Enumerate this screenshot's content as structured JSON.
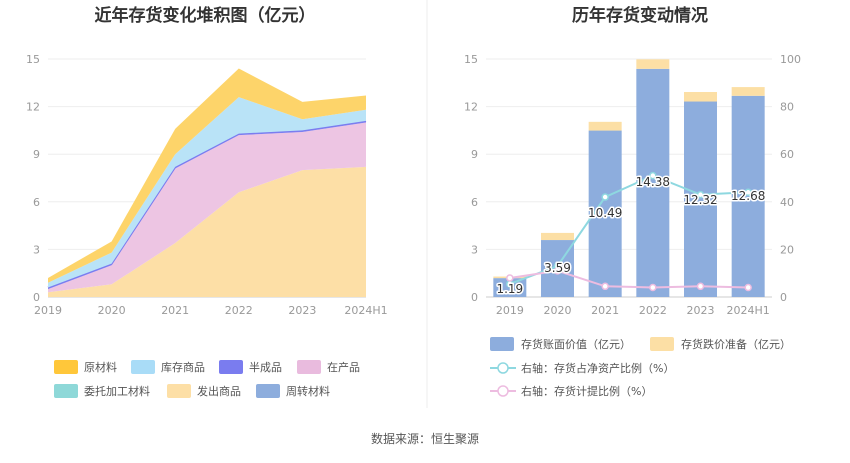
{
  "source": "数据来源：恒生聚源",
  "chart_data": [
    {
      "type": "area",
      "stacked": true,
      "title": "近年存货变化堆积图（亿元）",
      "categories": [
        "2019",
        "2020",
        "2021",
        "2022",
        "2023",
        "2024H1"
      ],
      "ylim": [
        0,
        15
      ],
      "yticks": [
        0,
        3,
        6,
        9,
        12,
        15
      ],
      "grid": true,
      "legend_position": "bottom",
      "series": [
        {
          "name": "发出商品",
          "color": "#FDDFA6",
          "values": [
            0.3,
            0.8,
            3.4,
            6.6,
            8.0,
            8.2
          ]
        },
        {
          "name": "在产品",
          "color": "#EDC5E3",
          "values": [
            0.2,
            1.2,
            4.7,
            3.6,
            2.4,
            2.8
          ]
        },
        {
          "name": "委托加工材料",
          "color": "#8ED8D8",
          "values": [
            0.0,
            0.0,
            0.0,
            0.0,
            0.0,
            0.0
          ]
        },
        {
          "name": "周转材料",
          "color": "#8DADDD",
          "values": [
            0.0,
            0.0,
            0.0,
            0.0,
            0.0,
            0.0
          ]
        },
        {
          "name": "半成品",
          "color": "#8080F0",
          "values": [
            0.1,
            0.1,
            0.1,
            0.1,
            0.1,
            0.1
          ]
        },
        {
          "name": "库存商品",
          "color": "#B9E3F7",
          "values": [
            0.3,
            0.7,
            0.8,
            2.3,
            0.7,
            0.7
          ]
        },
        {
          "name": "原材料",
          "color": "#FDD46A",
          "values": [
            0.3,
            0.7,
            1.6,
            1.8,
            1.1,
            0.9
          ]
        }
      ],
      "legend": [
        {
          "name": "原材料",
          "color": "#FFC73A"
        },
        {
          "name": "库存商品",
          "color": "#A9DCF7"
        },
        {
          "name": "半成品",
          "color": "#7A7CEF"
        },
        {
          "name": "在产品",
          "color": "#E9BBDE"
        },
        {
          "name": "委托加工材料",
          "color": "#8ED8D8"
        },
        {
          "name": "发出商品",
          "color": "#FDDFA6"
        },
        {
          "name": "周转材料",
          "color": "#8DADDD"
        }
      ]
    },
    {
      "type": "bar",
      "title": "历年存货变动情况",
      "categories": [
        "2019",
        "2020",
        "2021",
        "2022",
        "2023",
        "2024H1"
      ],
      "ylim": [
        0,
        15
      ],
      "yticks": [
        0,
        3,
        6,
        9,
        12,
        15
      ],
      "y2lim": [
        0,
        100
      ],
      "y2ticks": [
        0,
        20,
        40,
        60,
        80,
        100
      ],
      "grid": true,
      "legend_position": "bottom",
      "series": [
        {
          "name": "存货账面价值（亿元）",
          "kind": "bar",
          "axis": "left",
          "color": "#8DADDD",
          "values": [
            1.19,
            3.59,
            10.49,
            14.38,
            12.32,
            12.68
          ],
          "labels": [
            "1.19",
            "3.59",
            "10.49",
            "14.38",
            "12.32",
            "12.68"
          ]
        },
        {
          "name": "存货跌价准备（亿元）",
          "kind": "bar-stack",
          "axis": "left",
          "color": "#FCDFA5",
          "values": [
            0.1,
            0.45,
            0.55,
            0.6,
            0.6,
            0.55
          ]
        },
        {
          "name": "右轴：存货占净资产比例（%）",
          "kind": "line",
          "axis": "right",
          "color": "#8ED8E0",
          "values": [
            5.5,
            13.0,
            42.0,
            51.0,
            43.0,
            44.0
          ]
        },
        {
          "name": "右轴：存货计提比例（%）",
          "kind": "line",
          "axis": "right",
          "color": "#EDBCE0",
          "values": [
            8.0,
            11.0,
            4.5,
            4.0,
            4.5,
            4.0
          ]
        }
      ]
    }
  ]
}
